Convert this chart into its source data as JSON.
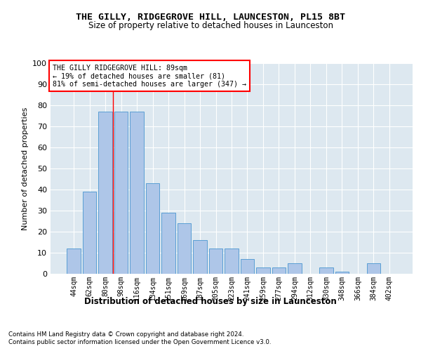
{
  "title": "THE GILLY, RIDGEGROVE HILL, LAUNCESTON, PL15 8BT",
  "subtitle": "Size of property relative to detached houses in Launceston",
  "xlabel": "Distribution of detached houses by size in Launceston",
  "ylabel": "Number of detached properties",
  "bar_labels": [
    "44sqm",
    "62sqm",
    "80sqm",
    "98sqm",
    "116sqm",
    "134sqm",
    "151sqm",
    "169sqm",
    "187sqm",
    "205sqm",
    "223sqm",
    "241sqm",
    "259sqm",
    "277sqm",
    "294sqm",
    "312sqm",
    "330sqm",
    "348sqm",
    "366sqm",
    "384sqm",
    "402sqm"
  ],
  "bar_values": [
    12,
    39,
    77,
    77,
    77,
    43,
    29,
    24,
    16,
    12,
    12,
    7,
    3,
    3,
    5,
    0,
    3,
    1,
    0,
    5,
    0
  ],
  "bar_color": "#aec6e8",
  "bar_edge_color": "#5a9fd4",
  "background_color": "#dde8f0",
  "ylim": [
    0,
    100
  ],
  "red_line_x": 2.5,
  "annotation_title": "THE GILLY RIDGEGROVE HILL: 89sqm",
  "annotation_line1": "← 19% of detached houses are smaller (81)",
  "annotation_line2": "81% of semi-detached houses are larger (347) →",
  "footnote1": "Contains HM Land Registry data © Crown copyright and database right 2024.",
  "footnote2": "Contains public sector information licensed under the Open Government Licence v3.0."
}
